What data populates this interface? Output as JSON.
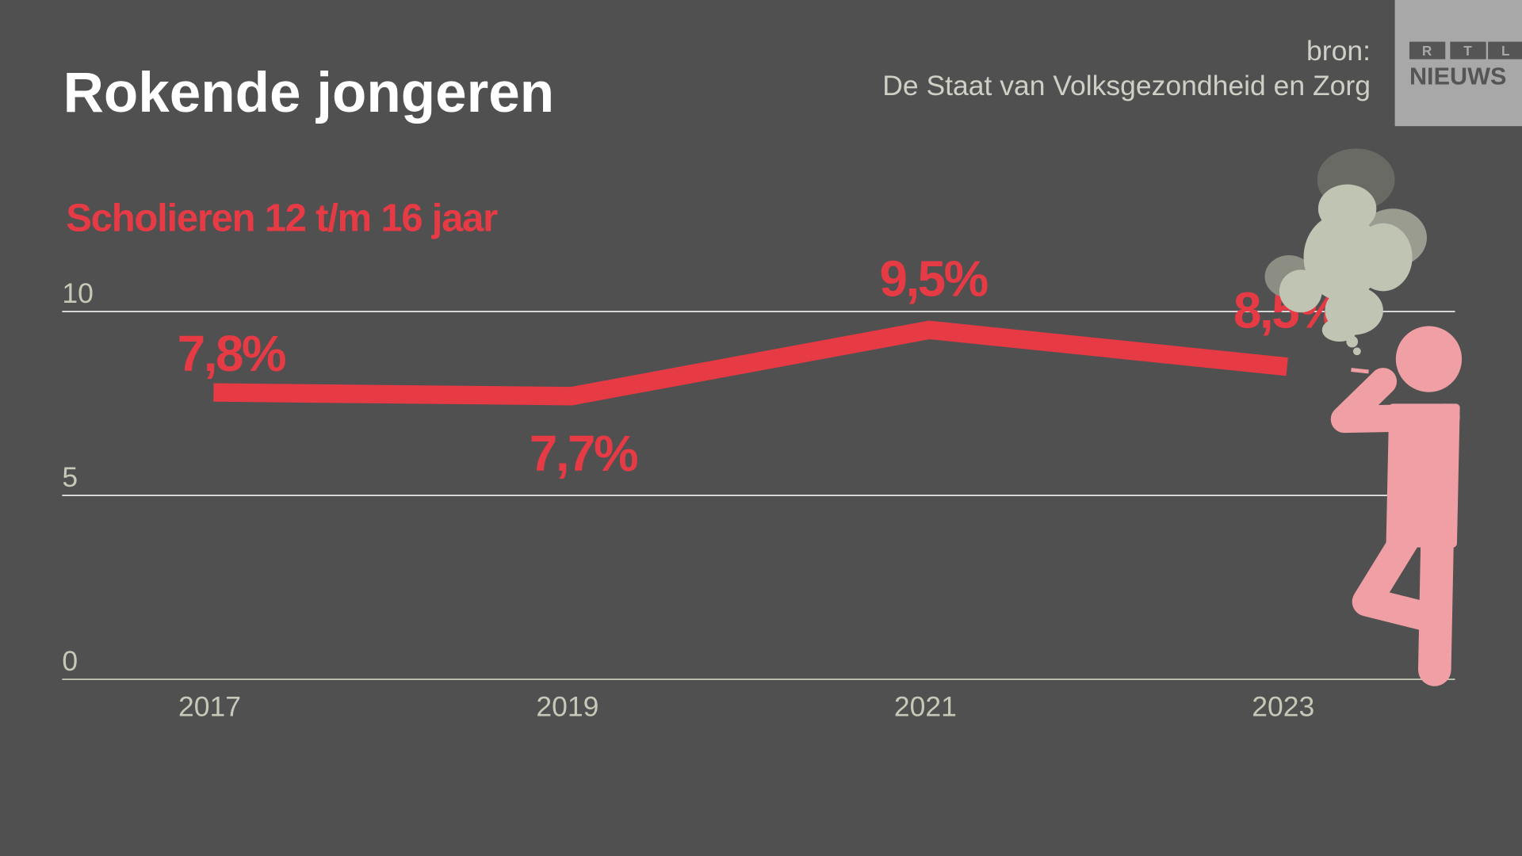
{
  "title": "Rokende jongeren",
  "source": {
    "line1": "bron:",
    "line2": "De Staat van Volksgezondheid en Zorg"
  },
  "logo": {
    "letters": [
      "R",
      "T",
      "L"
    ],
    "word": "NIEUWS"
  },
  "colors": {
    "background": "#505050",
    "line": "#e63a45",
    "figure": "#f0a0a4",
    "smoke": "#c0c4b2",
    "logo_bg": "#a8a8a8"
  },
  "chart_data": {
    "type": "line",
    "subtitle": "Scholieren 12 t/m 16 jaar",
    "x": [
      "2017",
      "2019",
      "2021",
      "2023"
    ],
    "series": [
      {
        "values": [
          7.8,
          7.7,
          9.5,
          8.5
        ]
      }
    ],
    "data_labels": [
      "7,8%",
      "7,7%",
      "9,5%",
      "8,5%"
    ],
    "ylim": [
      0,
      10
    ],
    "yticks": [
      0,
      5,
      10
    ],
    "ytick_labels": [
      "0",
      "5",
      "10"
    ],
    "grid": true,
    "decoration": "smoking-figure-icon"
  }
}
